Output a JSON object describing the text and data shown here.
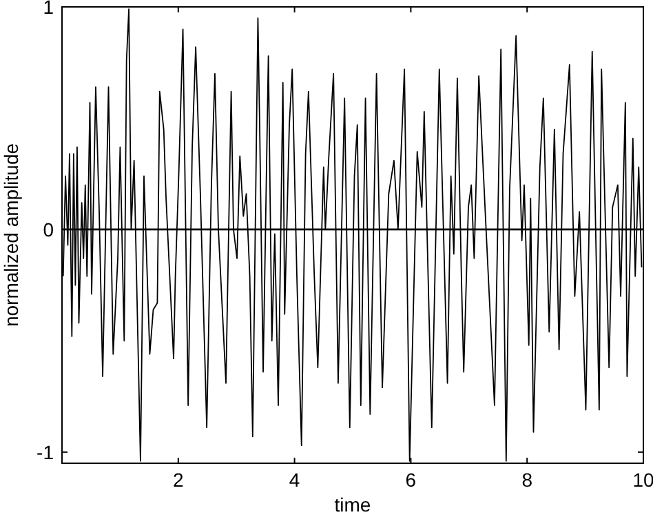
{
  "chart_data": {
    "type": "line",
    "xlabel": "time",
    "ylabel": "normalized amplitude",
    "xlim": [
      0,
      10
    ],
    "xticks": [
      2,
      4,
      6,
      8,
      10
    ],
    "ylim": [
      -1.05,
      1
    ],
    "yticks": [
      -1,
      0,
      1
    ],
    "grid": false,
    "line_style": "solid",
    "marker": "none",
    "ref_lines": [
      {
        "axis": "y",
        "value": 0,
        "color": "#000000"
      }
    ],
    "series": [
      {
        "color": "#000000",
        "x": [
          0.02,
          0.06,
          0.1,
          0.13,
          0.17,
          0.2,
          0.23,
          0.26,
          0.29,
          0.34,
          0.37,
          0.4,
          0.43,
          0.48,
          0.51,
          0.58,
          0.64,
          0.7,
          0.8,
          0.88,
          0.96,
          1.0,
          1.07,
          1.11,
          1.15,
          1.19,
          1.24,
          1.35,
          1.41,
          1.51,
          1.57,
          1.64,
          1.68,
          1.75,
          1.79,
          1.92,
          1.95,
          2.01,
          2.08,
          2.17,
          2.24,
          2.3,
          2.38,
          2.49,
          2.57,
          2.63,
          2.69,
          2.82,
          2.91,
          2.95,
          3.01,
          3.06,
          3.12,
          3.17,
          3.23,
          3.28,
          3.37,
          3.4,
          3.46,
          3.55,
          3.61,
          3.66,
          3.72,
          3.8,
          3.83,
          3.91,
          3.96,
          4.04,
          4.12,
          4.19,
          4.24,
          4.34,
          4.4,
          4.5,
          4.53,
          4.59,
          4.67,
          4.75,
          4.86,
          4.95,
          5.03,
          5.08,
          5.14,
          5.22,
          5.3,
          5.41,
          5.51,
          5.62,
          5.71,
          5.78,
          5.89,
          5.98,
          6.11,
          6.19,
          6.23,
          6.36,
          6.49,
          6.63,
          6.69,
          6.74,
          6.8,
          6.87,
          6.91,
          6.99,
          7.04,
          7.09,
          7.17,
          7.28,
          7.44,
          7.55,
          7.64,
          7.7,
          7.81,
          7.91,
          7.95,
          8.03,
          8.06,
          8.11,
          8.22,
          8.28,
          8.38,
          8.47,
          8.55,
          8.62,
          8.73,
          8.82,
          8.9,
          9.01,
          9.12,
          9.24,
          9.28,
          9.41,
          9.47,
          9.56,
          9.61,
          9.69,
          9.72,
          9.82,
          9.86,
          9.92,
          9.97
        ],
        "values": [
          -0.21,
          0.24,
          -0.07,
          0.34,
          -0.48,
          0.34,
          -0.25,
          0.37,
          -0.42,
          0.12,
          -0.13,
          0.2,
          -0.21,
          0.57,
          -0.29,
          0.64,
          0.08,
          -0.66,
          0.64,
          -0.56,
          -0.13,
          0.37,
          -0.5,
          0.76,
          0.99,
          0,
          0.31,
          -1.04,
          0.24,
          -0.56,
          -0.36,
          -0.33,
          0.62,
          0.45,
          0.14,
          -0.58,
          -0.21,
          0.26,
          0.9,
          -0.79,
          0.37,
          0.82,
          0.16,
          -0.89,
          0.2,
          0.7,
          0,
          -0.69,
          0.62,
          0,
          -0.13,
          0.33,
          0.06,
          0.16,
          -0.21,
          -0.93,
          0.95,
          0.47,
          -0.64,
          0.78,
          -0.5,
          -0.02,
          -0.79,
          0.66,
          -0.38,
          0.47,
          0.72,
          -0.21,
          -0.97,
          0.34,
          0.62,
          -0.21,
          -0.62,
          0.28,
          0,
          0.33,
          0.7,
          -0.69,
          0.59,
          -0.89,
          0.24,
          0.47,
          -0.79,
          0.59,
          -0.83,
          0.7,
          -0.71,
          0.16,
          0.31,
          0,
          0.72,
          -1.04,
          0.35,
          0.1,
          0.53,
          -0.89,
          0.72,
          -0.69,
          0.24,
          -0.11,
          0.68,
          -0.21,
          -0.64,
          0.1,
          0.2,
          -0.13,
          0.69,
          0.08,
          -0.79,
          0.81,
          -1.04,
          0.18,
          0.87,
          -0.05,
          0.2,
          -0.52,
          0.14,
          -0.91,
          0.28,
          0.59,
          -0.46,
          0.45,
          -0.54,
          0.34,
          0.74,
          -0.3,
          0.08,
          -0.81,
          0.8,
          -0.81,
          0.72,
          -0.62,
          0.1,
          0.2,
          -0.3,
          0.57,
          -0.66,
          0.41,
          -0.21,
          0.28,
          -0.17
        ]
      }
    ]
  }
}
